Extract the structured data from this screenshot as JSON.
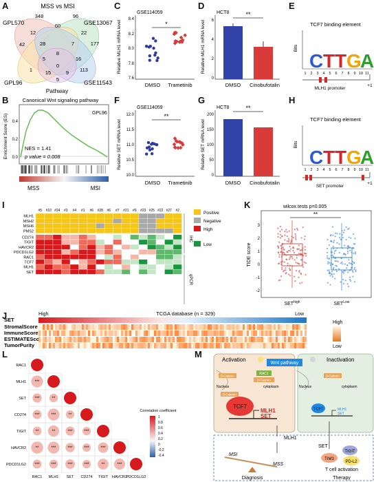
{
  "panel_labels": [
    "A",
    "B",
    "C",
    "D",
    "E",
    "F",
    "G",
    "H",
    "I",
    "J",
    "K",
    "L",
    "M"
  ],
  "venn": {
    "title": "MSS vs MSI",
    "sets": [
      "GPL570",
      "GSE13067",
      "GPL96",
      "GSE11543",
      "Pathway"
    ],
    "counts": [
      "348",
      "96",
      "42",
      "177",
      "12",
      "60",
      "22",
      "28",
      "5",
      "8",
      "7",
      "16",
      "113",
      "1",
      "15",
      "9",
      "0",
      "5"
    ]
  },
  "gsea": {
    "title": "Canonical Wnt signaling pathway",
    "tag": "GPL96",
    "ylabel": "Enrichment Score (ES)",
    "nes": "NES = 1.41",
    "pvalue": "p value = 0.008",
    "left": "MSS",
    "right": "MSI",
    "yticks": [
      "0.0",
      "0.2",
      "0.4"
    ]
  },
  "panelC": {
    "tag": "GSE114059",
    "ylabel": "Relative MLH1 mRNA level",
    "sig": "*",
    "groups": [
      "DMSO",
      "Trametinib"
    ],
    "yticks": [
      "7.6",
      "7.8",
      "8.0",
      "8.2",
      "8.4"
    ]
  },
  "panelD": {
    "tag": "HCT8",
    "ylabel": "Relative MLH1 mRNA level",
    "sig": "**",
    "groups": [
      "DMSO",
      "Cinobufotalin"
    ],
    "yticks": [
      "0",
      "2",
      "4",
      "6"
    ]
  },
  "panelF": {
    "tag": "GSE114059",
    "ylabel": "Relative SET mRNA level",
    "sig": "**",
    "groups": [
      "DMSO",
      "Trametinib"
    ],
    "yticks": [
      "10.0",
      "10.5",
      "11.0",
      "11.5",
      "12.0"
    ]
  },
  "panelG": {
    "tag": "HCT8",
    "ylabel": "Relative SET mRNA level",
    "sig": "**",
    "groups": [
      "DMSO",
      "Cinobufotalin"
    ],
    "yticks": [
      "0",
      "50",
      "100",
      "150",
      "200"
    ]
  },
  "motifE": {
    "title": "TCF7 binding element",
    "ylabel": "Bits",
    "promoter": "MLH1 promoter",
    "letters": "CTTGA",
    "positions": [
      "1",
      "2",
      "3",
      "4",
      "5",
      "6",
      "7",
      "8",
      "9",
      "10",
      "11"
    ],
    "plus1": "+1"
  },
  "motifH": {
    "title": "TCF7 binding element",
    "ylabel": "Bits",
    "promoter": "SET promoter",
    "letters": "CTTGA",
    "positions": [
      "1",
      "2",
      "3",
      "4",
      "5",
      "6",
      "7",
      "8",
      "9",
      "10",
      "11"
    ],
    "plus1": "+1"
  },
  "heatmapI": {
    "samples": [
      "#5",
      "#10",
      "#24",
      "#3",
      "#4",
      "#1",
      "#6",
      "#28",
      "#6",
      "#7",
      "#21",
      "#9",
      "#23",
      "#25",
      "#22",
      "#27",
      "#2"
    ],
    "ihc_rows": [
      "MLH1",
      "MSH2",
      "MSH6",
      "PMS2"
    ],
    "qpcr_rows": [
      "CD274",
      "TIGIT",
      "HAVCR2",
      "PDCD1LG2",
      "RAC1",
      "TCF7",
      "MLH1",
      "SET"
    ],
    "legend": [
      "Positive",
      "Negative",
      "High",
      "Low"
    ],
    "side_ihc": "IHC",
    "side_qpcr": "qPCR",
    "colors": {
      "positive": "#f5c518",
      "negative": "#a9a9a9",
      "high": "#d7191c",
      "low": "#1a9641"
    }
  },
  "panelK": {
    "title": "wilcox.tests p=0.005",
    "sig": "**",
    "ylabel": "TIDE score",
    "groups": [
      "SET^high",
      "SET^Low"
    ],
    "group_main": [
      "SET",
      "SET"
    ],
    "group_sup": [
      "high",
      "Low"
    ],
    "yticks": [
      "-2",
      "-1",
      "0",
      "1",
      "2",
      "3"
    ]
  },
  "panelJ": {
    "title": "TCGA database (n = 329)",
    "high": "High",
    "low": "Low",
    "rows": [
      "SET",
      "StromalScore",
      "ImmuneScore",
      "ESTIMATEScore",
      "TumorPurity"
    ],
    "legend_high": "High",
    "legend_low": "Low"
  },
  "panelL": {
    "genes": [
      "RAC1",
      "MLH1",
      "SET",
      "CD274",
      "TIGIT",
      "HAVCR2",
      "PDCD1LG2"
    ],
    "legend_title": "Correlation coefficient",
    "legend_ticks": [
      "1",
      "0.8",
      "0.6",
      "0.4",
      "0.2",
      "0",
      "-0.2",
      "-0.4"
    ]
  },
  "panelM": {
    "activation": "Activation",
    "inactivation": "Inactivation",
    "wnt": "Wnt pathway",
    "nucleus": "Nucleus",
    "cytoplasm": "cytoplasm",
    "bcatenin": "β-Catenin",
    "rac1": "RAC1",
    "tcf7": "TCF7",
    "mlh1": "MLH1",
    "set": "SET",
    "mlh1_small": "MLH1",
    "set_small": "SET",
    "arrow_mlh1": "MLH1",
    "arrow_set": "SET",
    "msi": "MSI",
    "mss": "MSS",
    "tigit": "TIGIT",
    "tim3": "TIM3",
    "pdl2": "PD-L2",
    "tcell": "T cell activation",
    "diagnosis": "Diagnosis",
    "therapy": "Therapy"
  }
}
